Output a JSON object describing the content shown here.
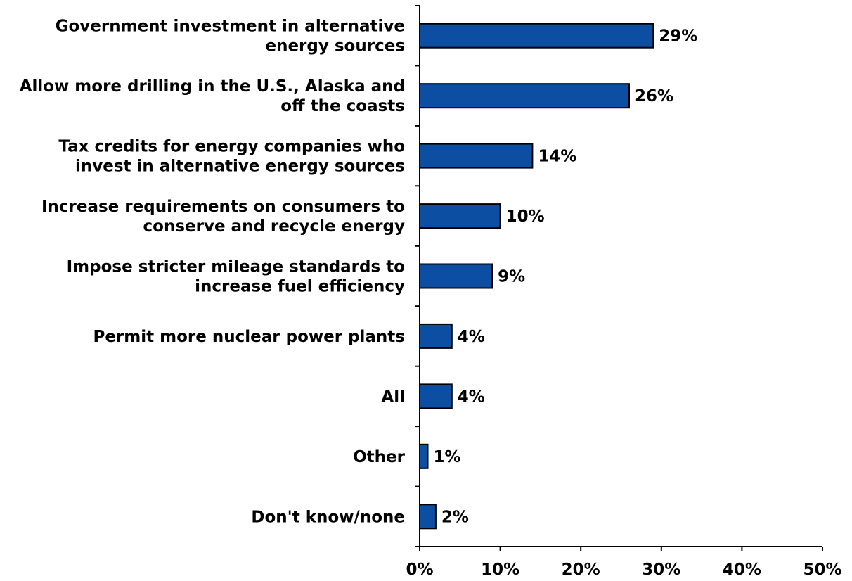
{
  "chart_data": {
    "type": "bar",
    "orientation": "horizontal",
    "categories": [
      [
        "Government investment in alternative",
        "energy sources"
      ],
      [
        "Allow more drilling in the U.S., Alaska and",
        "off the coasts"
      ],
      [
        "Tax credits for energy companies who",
        "invest in alternative energy sources"
      ],
      [
        "Increase requirements on consumers to",
        "conserve and recycle energy"
      ],
      [
        "Impose stricter mileage standards to",
        "increase fuel efficiency"
      ],
      [
        "Permit more nuclear power plants"
      ],
      [
        "All"
      ],
      [
        "Other"
      ],
      [
        "Don't know/none"
      ]
    ],
    "values": [
      29,
      26,
      14,
      10,
      9,
      4,
      4,
      1,
      2
    ],
    "data_labels": [
      "29%",
      "26%",
      "14%",
      "10%",
      "9%",
      "4%",
      "4%",
      "1%",
      "2%"
    ],
    "xlim": [
      0,
      50
    ],
    "xticks": [
      0,
      10,
      20,
      30,
      40,
      50
    ],
    "xtick_labels": [
      "0%",
      "10%",
      "20%",
      "30%",
      "40%",
      "50%"
    ],
    "grid": false,
    "legend": "none",
    "title": "",
    "xlabel": "",
    "ylabel": "",
    "colors": {
      "bar_fill": "#0b4ea2",
      "bar_stroke": "#000000",
      "axis": "#000000",
      "text": "#000000"
    }
  }
}
